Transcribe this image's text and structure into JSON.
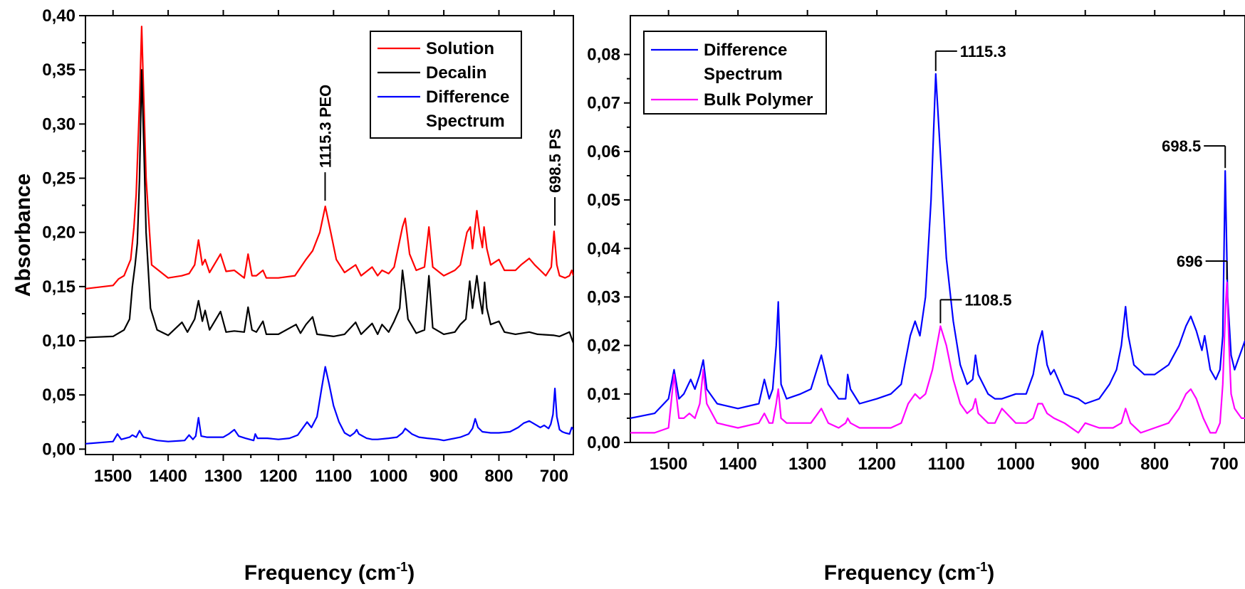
{
  "chart_data": [
    {
      "type": "line",
      "xlabel": "Frequency (cm",
      "xlabel_sup": "-1",
      "xlabel_end": ")",
      "ylabel": "Absorbance",
      "xlim": [
        1550,
        665
      ],
      "ylim": [
        -0.005,
        0.4
      ],
      "x_ticks": [
        1500,
        1400,
        1300,
        1200,
        1100,
        1000,
        900,
        800,
        700
      ],
      "y_ticks": [
        "0,00",
        "0,05",
        "0,10",
        "0,15",
        "0,20",
        "0,25",
        "0,30",
        "0,35",
        "0,40"
      ],
      "y_tick_values": [
        0,
        0.05,
        0.1,
        0.15,
        0.2,
        0.25,
        0.3,
        0.35,
        0.4
      ],
      "legend": "top-right",
      "series": [
        {
          "name": "Solution",
          "color": "#ff0000",
          "x": [
            1550,
            1500,
            1490,
            1480,
            1468,
            1462,
            1458,
            1452,
            1448,
            1444,
            1440,
            1430,
            1400,
            1375,
            1362,
            1352,
            1345,
            1338,
            1333,
            1325,
            1305,
            1295,
            1280,
            1262,
            1255,
            1248,
            1240,
            1228,
            1222,
            1200,
            1170,
            1150,
            1138,
            1125,
            1115,
            1105,
            1095,
            1080,
            1060,
            1050,
            1030,
            1020,
            1012,
            1000,
            990,
            975,
            970,
            962,
            950,
            935,
            927,
            920,
            900,
            880,
            870,
            858,
            852,
            848,
            840,
            835,
            830,
            827,
            822,
            815,
            800,
            790,
            770,
            760,
            745,
            735,
            725,
            715,
            705,
            700,
            695,
            690,
            680,
            672,
            668,
            665
          ],
          "y": [
            0.148,
            0.151,
            0.157,
            0.16,
            0.175,
            0.205,
            0.235,
            0.32,
            0.39,
            0.32,
            0.25,
            0.17,
            0.158,
            0.16,
            0.162,
            0.17,
            0.193,
            0.17,
            0.175,
            0.163,
            0.18,
            0.164,
            0.165,
            0.158,
            0.18,
            0.16,
            0.16,
            0.165,
            0.158,
            0.158,
            0.16,
            0.175,
            0.183,
            0.2,
            0.224,
            0.2,
            0.175,
            0.163,
            0.17,
            0.16,
            0.168,
            0.16,
            0.165,
            0.162,
            0.168,
            0.205,
            0.213,
            0.18,
            0.165,
            0.168,
            0.205,
            0.168,
            0.16,
            0.165,
            0.17,
            0.2,
            0.205,
            0.185,
            0.22,
            0.2,
            0.186,
            0.205,
            0.185,
            0.17,
            0.175,
            0.165,
            0.165,
            0.17,
            0.176,
            0.17,
            0.165,
            0.16,
            0.168,
            0.201,
            0.17,
            0.16,
            0.158,
            0.16,
            0.165,
            0.16
          ]
        },
        {
          "name": "Decalin",
          "color": "#000000",
          "x": [
            1550,
            1500,
            1480,
            1470,
            1465,
            1460,
            1456,
            1452,
            1448,
            1444,
            1440,
            1432,
            1420,
            1400,
            1375,
            1365,
            1352,
            1345,
            1338,
            1333,
            1325,
            1305,
            1295,
            1280,
            1262,
            1255,
            1248,
            1240,
            1228,
            1222,
            1200,
            1168,
            1160,
            1150,
            1138,
            1130,
            1100,
            1080,
            1060,
            1050,
            1030,
            1020,
            1012,
            1000,
            990,
            980,
            975,
            970,
            965,
            950,
            935,
            927,
            920,
            900,
            880,
            870,
            860,
            853,
            848,
            840,
            835,
            830,
            826,
            822,
            815,
            800,
            790,
            770,
            745,
            730,
            700,
            690,
            672,
            668,
            665
          ],
          "y": [
            0.103,
            0.104,
            0.11,
            0.12,
            0.15,
            0.17,
            0.19,
            0.25,
            0.35,
            0.28,
            0.2,
            0.13,
            0.11,
            0.105,
            0.117,
            0.108,
            0.12,
            0.137,
            0.118,
            0.128,
            0.11,
            0.127,
            0.108,
            0.109,
            0.108,
            0.131,
            0.11,
            0.108,
            0.118,
            0.106,
            0.106,
            0.115,
            0.107,
            0.115,
            0.122,
            0.106,
            0.104,
            0.106,
            0.117,
            0.106,
            0.116,
            0.106,
            0.115,
            0.108,
            0.118,
            0.13,
            0.165,
            0.145,
            0.12,
            0.107,
            0.11,
            0.16,
            0.112,
            0.106,
            0.108,
            0.115,
            0.12,
            0.155,
            0.13,
            0.16,
            0.14,
            0.125,
            0.154,
            0.13,
            0.115,
            0.118,
            0.108,
            0.106,
            0.108,
            0.106,
            0.105,
            0.104,
            0.108,
            0.102,
            0.098
          ]
        },
        {
          "name": "Difference Spectrum",
          "color": "#0000ff",
          "x": [
            1550,
            1500,
            1492,
            1485,
            1470,
            1465,
            1458,
            1452,
            1445,
            1420,
            1400,
            1370,
            1362,
            1355,
            1350,
            1345,
            1340,
            1330,
            1300,
            1290,
            1280,
            1272,
            1260,
            1245,
            1242,
            1238,
            1220,
            1200,
            1180,
            1165,
            1155,
            1148,
            1140,
            1130,
            1122,
            1115,
            1108,
            1100,
            1090,
            1080,
            1070,
            1062,
            1058,
            1054,
            1040,
            1030,
            1020,
            1000,
            985,
            975,
            970,
            965,
            958,
            945,
            930,
            910,
            900,
            870,
            855,
            848,
            843,
            838,
            830,
            815,
            800,
            780,
            765,
            755,
            745,
            735,
            725,
            718,
            710,
            706,
            702,
            698.5,
            695,
            690,
            685,
            680,
            672,
            668,
            665
          ],
          "y": [
            0.005,
            0.007,
            0.014,
            0.009,
            0.011,
            0.013,
            0.011,
            0.017,
            0.011,
            0.008,
            0.007,
            0.008,
            0.013,
            0.009,
            0.012,
            0.029,
            0.012,
            0.011,
            0.011,
            0.014,
            0.018,
            0.012,
            0.01,
            0.008,
            0.014,
            0.01,
            0.01,
            0.009,
            0.01,
            0.013,
            0.02,
            0.025,
            0.02,
            0.03,
            0.055,
            0.076,
            0.06,
            0.04,
            0.025,
            0.015,
            0.012,
            0.015,
            0.018,
            0.014,
            0.01,
            0.009,
            0.009,
            0.01,
            0.011,
            0.015,
            0.019,
            0.017,
            0.014,
            0.011,
            0.01,
            0.009,
            0.008,
            0.011,
            0.014,
            0.019,
            0.028,
            0.02,
            0.016,
            0.015,
            0.015,
            0.016,
            0.02,
            0.024,
            0.026,
            0.023,
            0.02,
            0.022,
            0.019,
            0.023,
            0.032,
            0.056,
            0.03,
            0.018,
            0.016,
            0.015,
            0.014,
            0.02,
            0.018
          ]
        }
      ],
      "annotations": [
        {
          "text": "1115.3 PEO",
          "x": 1115.3,
          "y": 0.224
        },
        {
          "text": "698.5 PS",
          "x": 698.5,
          "y": 0.201
        }
      ]
    },
    {
      "type": "line",
      "xlabel": "Frequency (cm",
      "xlabel_sup": "-1",
      "xlabel_end": ")",
      "ylabel": "",
      "xlim": [
        1555,
        670
      ],
      "ylim": [
        0,
        0.088
      ],
      "x_ticks": [
        1500,
        1400,
        1300,
        1200,
        1100,
        1000,
        900,
        800,
        700
      ],
      "y_ticks": [
        "0,00",
        "0,01",
        "0,02",
        "0,03",
        "0,04",
        "0,05",
        "0,06",
        "0,07",
        "0,08"
      ],
      "y_tick_values": [
        0,
        0.01,
        0.02,
        0.03,
        0.04,
        0.05,
        0.06,
        0.07,
        0.08
      ],
      "legend": "top-left",
      "series": [
        {
          "name": "Difference Spectrum",
          "color": "#0000ff",
          "x": [
            1555,
            1520,
            1500,
            1492,
            1485,
            1478,
            1468,
            1462,
            1455,
            1450,
            1445,
            1430,
            1400,
            1370,
            1362,
            1355,
            1350,
            1345,
            1342,
            1338,
            1330,
            1310,
            1295,
            1280,
            1270,
            1255,
            1245,
            1242,
            1238,
            1225,
            1200,
            1180,
            1165,
            1160,
            1152,
            1145,
            1138,
            1130,
            1122,
            1115.3,
            1108,
            1100,
            1090,
            1080,
            1070,
            1062,
            1058,
            1054,
            1040,
            1030,
            1020,
            1000,
            985,
            975,
            968,
            962,
            955,
            950,
            945,
            930,
            910,
            900,
            880,
            865,
            855,
            848,
            842,
            838,
            830,
            815,
            800,
            780,
            765,
            755,
            748,
            740,
            732,
            728,
            720,
            712,
            706,
            702,
            698.5,
            695,
            690,
            685,
            680,
            675,
            670
          ],
          "y": [
            0.005,
            0.006,
            0.009,
            0.015,
            0.009,
            0.01,
            0.013,
            0.011,
            0.014,
            0.017,
            0.011,
            0.008,
            0.007,
            0.008,
            0.013,
            0.009,
            0.011,
            0.02,
            0.029,
            0.012,
            0.009,
            0.01,
            0.011,
            0.018,
            0.012,
            0.009,
            0.009,
            0.014,
            0.011,
            0.008,
            0.009,
            0.01,
            0.012,
            0.016,
            0.022,
            0.025,
            0.022,
            0.03,
            0.05,
            0.076,
            0.058,
            0.038,
            0.025,
            0.016,
            0.012,
            0.013,
            0.018,
            0.014,
            0.01,
            0.009,
            0.009,
            0.01,
            0.01,
            0.014,
            0.02,
            0.023,
            0.016,
            0.014,
            0.015,
            0.01,
            0.009,
            0.008,
            0.009,
            0.012,
            0.015,
            0.02,
            0.028,
            0.022,
            0.016,
            0.014,
            0.014,
            0.016,
            0.02,
            0.024,
            0.026,
            0.023,
            0.019,
            0.022,
            0.015,
            0.013,
            0.015,
            0.022,
            0.056,
            0.03,
            0.018,
            0.015,
            0.017,
            0.019,
            0.021
          ]
        },
        {
          "name": "Bulk Polymer",
          "color": "#ff00ff",
          "x": [
            1555,
            1520,
            1500,
            1492,
            1485,
            1478,
            1470,
            1462,
            1455,
            1450,
            1445,
            1430,
            1400,
            1370,
            1362,
            1355,
            1350,
            1345,
            1342,
            1338,
            1330,
            1310,
            1295,
            1280,
            1270,
            1255,
            1245,
            1242,
            1238,
            1225,
            1200,
            1180,
            1165,
            1155,
            1145,
            1138,
            1130,
            1120,
            1108.5,
            1100,
            1090,
            1080,
            1070,
            1062,
            1058,
            1054,
            1040,
            1030,
            1020,
            1000,
            985,
            975,
            968,
            962,
            955,
            945,
            930,
            910,
            900,
            880,
            860,
            848,
            842,
            835,
            820,
            800,
            780,
            765,
            755,
            748,
            740,
            730,
            720,
            712,
            706,
            702,
            698,
            696,
            693,
            690,
            685,
            680,
            675,
            670
          ],
          "y": [
            0.002,
            0.002,
            0.003,
            0.014,
            0.005,
            0.005,
            0.006,
            0.005,
            0.008,
            0.015,
            0.008,
            0.004,
            0.003,
            0.004,
            0.006,
            0.004,
            0.004,
            0.008,
            0.011,
            0.005,
            0.004,
            0.004,
            0.004,
            0.007,
            0.004,
            0.003,
            0.004,
            0.005,
            0.004,
            0.003,
            0.003,
            0.003,
            0.004,
            0.008,
            0.01,
            0.009,
            0.01,
            0.015,
            0.024,
            0.02,
            0.013,
            0.008,
            0.006,
            0.007,
            0.009,
            0.006,
            0.004,
            0.004,
            0.007,
            0.004,
            0.004,
            0.005,
            0.008,
            0.008,
            0.006,
            0.005,
            0.004,
            0.002,
            0.004,
            0.003,
            0.003,
            0.004,
            0.007,
            0.004,
            0.002,
            0.003,
            0.004,
            0.007,
            0.01,
            0.011,
            0.009,
            0.005,
            0.002,
            0.002,
            0.004,
            0.012,
            0.028,
            0.033,
            0.02,
            0.01,
            0.007,
            0.006,
            0.005,
            0.005
          ]
        }
      ],
      "annotations": [
        {
          "text": "1115.3",
          "x": 1115.3,
          "y": 0.076
        },
        {
          "text": "1108.5",
          "x": 1108.5,
          "y": 0.024
        },
        {
          "text": "698.5",
          "x": 698.5,
          "y": 0.056
        },
        {
          "text": "696",
          "x": 696,
          "y": 0.033
        }
      ]
    }
  ]
}
